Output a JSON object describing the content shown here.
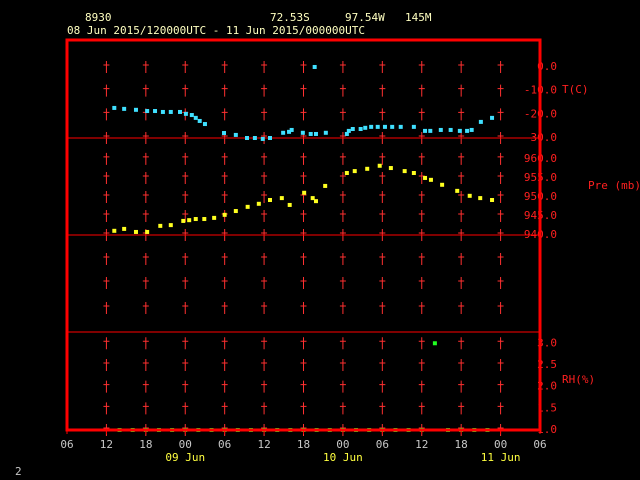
{
  "chart_data": [
    {
      "type": "scatter",
      "station": "8930",
      "lat": "72.53S",
      "lon": "97.54W",
      "elev": "145M",
      "subtitle": "08 Jun 2015/120000UTC - 11 Jun 2015/000000UTC",
      "ylabel": "T(C)",
      "xlim": [
        6,
        78
      ],
      "ylim": [
        -30,
        11.4
      ],
      "yticks": [
        {
          "value": 0,
          "label": "0.0"
        },
        {
          "value": -10,
          "label": "-10.0"
        },
        {
          "value": -20,
          "label": "-20.0"
        },
        {
          "value": -30,
          "label": "-30.0"
        }
      ],
      "color": "#40e0ff",
      "x": [
        13.2,
        14.7,
        16.5,
        18.2,
        19.4,
        20.6,
        21.8,
        23.2,
        24.1,
        25.0,
        25.6,
        26.2,
        27.0,
        29.9,
        31.7,
        33.4,
        34.6,
        35.8,
        36.9,
        38.9,
        39.8,
        40.2,
        41.9,
        43.1,
        43.7,
        43.9,
        45.4,
        48.6,
        48.9,
        49.5,
        50.7,
        51.4,
        52.3,
        53.3,
        54.4,
        55.5,
        56.8,
        58.8,
        60.5,
        61.3,
        62.9,
        64.4,
        65.8,
        66.9,
        67.6,
        69.0,
        70.7
      ],
      "values": [
        -17.3,
        -17.7,
        -18.1,
        -18.6,
        -18.6,
        -19.0,
        -19.0,
        -19.0,
        -19.8,
        -20.3,
        -21.5,
        -22.8,
        -24.1,
        -27.9,
        -28.7,
        -30.0,
        -30.0,
        -30.4,
        -30.0,
        -27.8,
        -27.4,
        -26.6,
        -27.8,
        -28.3,
        0.0,
        -28.3,
        -27.8,
        -28.3,
        -27.0,
        -26.2,
        -26.2,
        -25.7,
        -25.3,
        -25.3,
        -25.3,
        -25.3,
        -25.3,
        -25.3,
        -27.0,
        -27.0,
        -26.6,
        -26.6,
        -27.0,
        -27.0,
        -26.6,
        -23.2,
        -21.5
      ]
    },
    {
      "type": "scatter",
      "ylabel": "Pre (mb)",
      "xlim": [
        6,
        78
      ],
      "ylim": [
        940,
        965.5
      ],
      "yticks": [
        {
          "value": 960,
          "label": "960.0"
        },
        {
          "value": 955,
          "label": "955.0"
        },
        {
          "value": 950,
          "label": "950.0"
        },
        {
          "value": 945,
          "label": "945.0"
        },
        {
          "value": 940,
          "label": "940.0"
        }
      ],
      "color": "#ffff20",
      "x": [
        13.2,
        14.7,
        16.5,
        18.2,
        20.2,
        21.8,
        23.7,
        24.6,
        25.6,
        26.9,
        28.4,
        30.0,
        31.7,
        33.5,
        35.2,
        36.9,
        38.7,
        39.9,
        42.1,
        43.4,
        43.9,
        45.3,
        48.6,
        49.8,
        51.7,
        53.6,
        55.3,
        57.4,
        58.8,
        60.5,
        61.4,
        63.1,
        65.4,
        67.3,
        68.9,
        70.7
      ],
      "values": [
        941.1,
        941.6,
        940.8,
        940.8,
        942.4,
        942.6,
        943.7,
        943.9,
        944.2,
        944.2,
        944.5,
        945.3,
        946.3,
        947.4,
        948.2,
        949.2,
        949.7,
        947.9,
        951.1,
        949.7,
        948.9,
        952.9,
        956.3,
        956.8,
        957.4,
        958.2,
        957.6,
        956.8,
        956.3,
        955.0,
        954.5,
        953.2,
        951.6,
        950.3,
        949.7,
        949.2
      ]
    },
    {
      "type": "scatter",
      "ylabel": "RH(%)",
      "xlim": [
        6,
        78
      ],
      "ylim": [
        1,
        3.26
      ],
      "yticks": [
        {
          "value": 3,
          "label": "3.0"
        },
        {
          "value": 2.5,
          "label": "2.5"
        },
        {
          "value": 2,
          "label": "2.0"
        },
        {
          "value": 1.5,
          "label": "1.5"
        },
        {
          "value": 1,
          "label": "1.0"
        }
      ],
      "color": "#20ff20",
      "xticks": [
        {
          "value": 6,
          "label": "06"
        },
        {
          "value": 12,
          "label": "12"
        },
        {
          "value": 18,
          "label": "18"
        },
        {
          "value": 24,
          "label": "00"
        },
        {
          "value": 30,
          "label": "06"
        },
        {
          "value": 36,
          "label": "12"
        },
        {
          "value": 42,
          "label": "18"
        },
        {
          "value": 48,
          "label": "00"
        },
        {
          "value": 54,
          "label": "06"
        },
        {
          "value": 60,
          "label": "12"
        },
        {
          "value": 66,
          "label": "18"
        },
        {
          "value": 72,
          "label": "00"
        },
        {
          "value": 78,
          "label": "06"
        }
      ],
      "date_labels": [
        {
          "value": 24,
          "label": "09 Jun"
        },
        {
          "value": 48,
          "label": "10 Jun"
        },
        {
          "value": 72,
          "label": "11 Jun"
        }
      ],
      "x": [
        14,
        16,
        18,
        20,
        22,
        24,
        26,
        28,
        30,
        32,
        34,
        36,
        38,
        40,
        42,
        44,
        46,
        48,
        50,
        52,
        54,
        56,
        58,
        60,
        62,
        64,
        66,
        68,
        70
      ],
      "values": [
        1,
        1,
        1,
        1,
        1,
        1,
        1,
        1,
        1,
        1,
        1,
        1,
        1,
        1,
        1,
        1,
        1,
        1,
        1,
        1,
        1,
        1,
        1,
        1,
        3,
        1,
        1,
        1,
        1
      ]
    }
  ],
  "footer": "2"
}
